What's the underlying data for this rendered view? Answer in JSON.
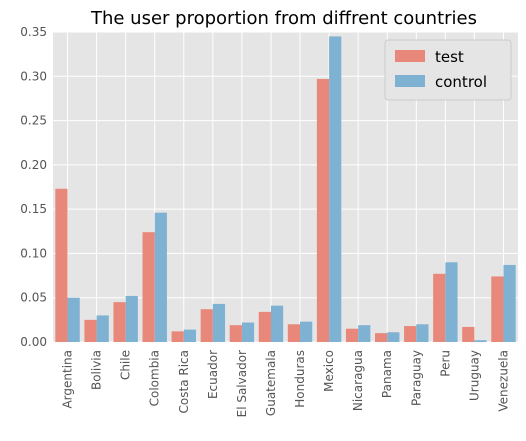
{
  "chart_data": {
    "type": "bar",
    "title": "The user proportion from diffrent countries",
    "xlabel": "",
    "ylabel": "",
    "ylim": [
      0,
      0.35
    ],
    "yticks": [
      "0.00",
      "0.05",
      "0.10",
      "0.15",
      "0.20",
      "0.25",
      "0.30",
      "0.35"
    ],
    "grid": true,
    "legend_position": "top-right",
    "categories": [
      "Argentina",
      "Bolivia",
      "Chile",
      "Colombia",
      "Costa Rica",
      "Ecuador",
      "El Salvador",
      "Guatemala",
      "Honduras",
      "Mexico",
      "Nicaragua",
      "Panama",
      "Paraguay",
      "Peru",
      "Uruguay",
      "Venezuela"
    ],
    "series": [
      {
        "name": "test",
        "color": "#E8887A",
        "values": [
          0.173,
          0.025,
          0.045,
          0.124,
          0.012,
          0.037,
          0.019,
          0.034,
          0.02,
          0.297,
          0.015,
          0.01,
          0.018,
          0.077,
          0.017,
          0.074
        ]
      },
      {
        "name": "control",
        "color": "#7FB1D3",
        "values": [
          0.05,
          0.03,
          0.052,
          0.146,
          0.014,
          0.043,
          0.022,
          0.041,
          0.023,
          0.345,
          0.019,
          0.011,
          0.02,
          0.09,
          0.002,
          0.087
        ]
      }
    ]
  }
}
